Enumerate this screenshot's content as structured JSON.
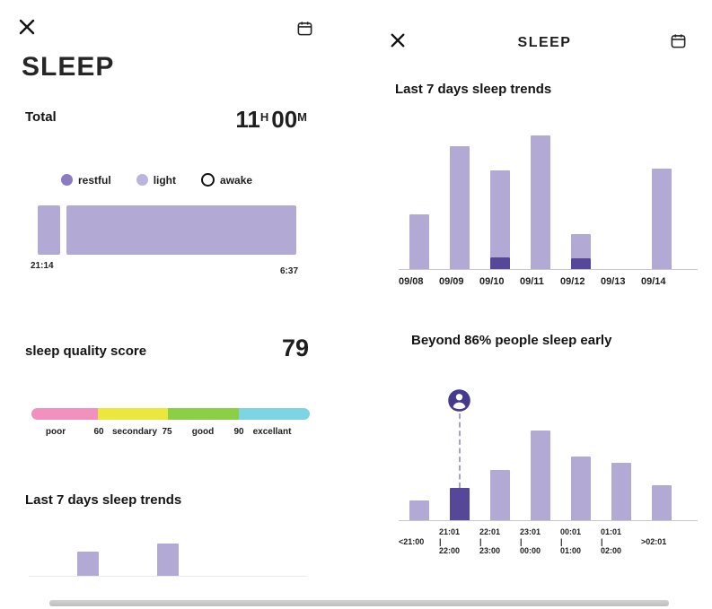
{
  "colors": {
    "light_purple": "#b2aad5",
    "dark_purple": "#564798",
    "restful_dot": "#8a7bc3",
    "light_dot": "#bcb4de",
    "axis_line": "#c9c9c9",
    "person_icon": "#463a8e"
  },
  "left_screen": {
    "title": "SLEEP",
    "total_label": "Total",
    "total": {
      "hours": "11",
      "hours_unit": "H",
      "minutes": "00",
      "minutes_unit": "M"
    },
    "legend": [
      {
        "label": "restful",
        "style": "filled-dark"
      },
      {
        "label": "light",
        "style": "filled-light"
      },
      {
        "label": "awake",
        "style": "outline"
      }
    ],
    "quality_label": "sleep quality score",
    "quality_value": "79",
    "quality_scale": {
      "segments": [
        {
          "label": "poor",
          "color": "#f291bd",
          "width_pct": 24
        },
        {
          "label": "secondary",
          "color": "#ece73c",
          "width_pct": 25
        },
        {
          "label": "good",
          "color": "#8bcf45",
          "width_pct": 25.5
        },
        {
          "label": "excellant",
          "color": "#7ed4e2",
          "width_pct": 25.5
        }
      ],
      "thresholds": [
        "60",
        "75",
        "90"
      ]
    },
    "scale_labels": [
      "poor",
      "60",
      "secondary",
      "75",
      "good",
      "90",
      "excellant"
    ],
    "trends_title": "Last 7 days sleep trends"
  },
  "right_screen": {
    "title": "SLEEP",
    "trends_title": "Last 7 days sleep trends",
    "bedtime_title": "Beyond 86% people sleep early"
  },
  "chart_data": [
    {
      "id": "sleep_timeline",
      "type": "timeline",
      "start_label": "21:14",
      "end_label": "6:37",
      "stages": [
        "restful",
        "light",
        "awake"
      ],
      "segments": [
        {
          "stage": "light",
          "width_pct": 8.7
        },
        {
          "stage": "light",
          "width_pct": 88.9
        }
      ]
    },
    {
      "id": "left_trends_partial",
      "type": "bar",
      "title": "Last 7 days sleep trends",
      "note": "chart cut off at bottom edge of screen; two bars visible",
      "categories": [
        "",
        "",
        "",
        "",
        "",
        "",
        ""
      ],
      "values": [
        0,
        27,
        0,
        36,
        0,
        0,
        0
      ],
      "value_unit": "px (no y-axis shown)"
    },
    {
      "id": "right_trends_7days",
      "type": "stacked-bar",
      "title": "Last 7 days sleep trends",
      "categories": [
        "09/08",
        "09/09",
        "09/10",
        "09/11",
        "09/12",
        "09/13",
        "09/14"
      ],
      "series": [
        {
          "name": "restful",
          "values": [
            0,
            0,
            13,
            0,
            12,
            0,
            0
          ]
        },
        {
          "name": "light",
          "values": [
            61,
            137,
            97,
            149,
            27,
            0,
            112
          ]
        }
      ],
      "value_unit": "px (no y-axis shown)",
      "grid": false,
      "legend_position": "none"
    },
    {
      "id": "bedtime_distribution",
      "type": "bar",
      "title": "Beyond 86% people sleep early",
      "categories": [
        "<21:00",
        "21:01|22:00",
        "22:01|23:00",
        "23:01|00:00",
        "00:01|01:00",
        "01:01|02:00",
        ">02:01"
      ],
      "values": [
        22,
        36,
        56,
        100,
        71,
        64,
        39
      ],
      "highlight_index": 1,
      "highlight_marker": "person-icon",
      "value_unit": "px (no y-axis shown)",
      "grid": false
    }
  ]
}
